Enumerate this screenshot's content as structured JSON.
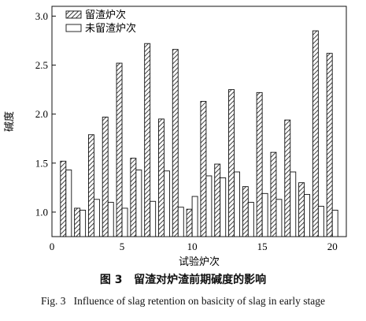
{
  "caption": {
    "zh_label": "图 3",
    "zh_text": "留渣对炉渣前期碱度的影响",
    "en_label": "Fig. 3",
    "en_text": "Influence of slag retention on basicity of slag in early stage"
  },
  "chart_data": {
    "type": "bar",
    "xlabel": "试验炉次",
    "ylabel": "碱度",
    "xlim": [
      0,
      21
    ],
    "ylim": [
      0.75,
      3.1
    ],
    "xticks": [
      0,
      5,
      10,
      15,
      20
    ],
    "yticks": [
      1.0,
      1.5,
      2.0,
      2.5,
      3.0
    ],
    "ytick_labels": [
      "1.0",
      "1.5",
      "2.0",
      "2.5",
      "3.0"
    ],
    "legend_position": "top-left",
    "categories": [
      1,
      2,
      3,
      4,
      5,
      6,
      7,
      8,
      9,
      10,
      11,
      12,
      13,
      14,
      15,
      16,
      17,
      18,
      19,
      20
    ],
    "series": [
      {
        "name": "留渣炉次",
        "pattern": "hatch",
        "values": [
          1.52,
          1.04,
          1.79,
          1.97,
          2.52,
          1.55,
          2.72,
          1.95,
          2.66,
          1.03,
          2.13,
          1.49,
          2.25,
          1.26,
          2.22,
          1.61,
          1.94,
          1.3,
          2.85,
          2.62
        ]
      },
      {
        "name": "未留渣炉次",
        "pattern": "open",
        "values": [
          1.43,
          1.02,
          1.13,
          1.1,
          1.04,
          1.43,
          1.11,
          1.42,
          1.05,
          1.16,
          1.37,
          1.35,
          1.41,
          1.1,
          1.19,
          1.13,
          1.41,
          1.18,
          1.06,
          1.02
        ]
      }
    ]
  }
}
